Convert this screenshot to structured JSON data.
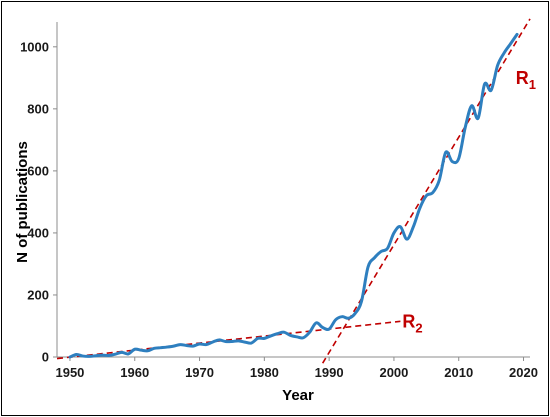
{
  "chart_data": {
    "type": "line",
    "title": "",
    "xlabel": "Year",
    "ylabel": "N of publications",
    "xlim": [
      1948,
      2021
    ],
    "ylim": [
      0,
      1080
    ],
    "x_ticks": [
      1950,
      1960,
      1970,
      1980,
      1990,
      2000,
      2010,
      2020
    ],
    "y_ticks": [
      0,
      200,
      400,
      600,
      800,
      1000
    ],
    "grid": false,
    "legend": "none",
    "series": [
      {
        "color": "#2e7fbf",
        "x": [
          1950,
          1951,
          1952,
          1953,
          1954,
          1955,
          1956,
          1957,
          1958,
          1959,
          1960,
          1961,
          1962,
          1963,
          1964,
          1965,
          1966,
          1967,
          1968,
          1969,
          1970,
          1971,
          1972,
          1973,
          1974,
          1975,
          1976,
          1977,
          1978,
          1979,
          1980,
          1981,
          1982,
          1983,
          1984,
          1985,
          1986,
          1987,
          1988,
          1989,
          1990,
          1991,
          1992,
          1993,
          1994,
          1995,
          1996,
          1997,
          1998,
          1999,
          2000,
          2001,
          2002,
          2003,
          2004,
          2005,
          2006,
          2007,
          2008,
          2009,
          2010,
          2011,
          2012,
          2013,
          2014,
          2015,
          2016,
          2017,
          2018,
          2019
        ],
        "values": [
          0,
          8,
          3,
          2,
          4,
          6,
          5,
          9,
          15,
          10,
          25,
          22,
          20,
          28,
          30,
          32,
          35,
          40,
          37,
          35,
          42,
          40,
          48,
          55,
          50,
          50,
          52,
          48,
          45,
          60,
          60,
          68,
          75,
          80,
          70,
          65,
          62,
          80,
          110,
          95,
          90,
          120,
          130,
          125,
          140,
          180,
          290,
          320,
          340,
          350,
          400,
          420,
          380,
          420,
          480,
          520,
          530,
          570,
          660,
          630,
          640,
          740,
          810,
          770,
          880,
          860,
          940,
          980,
          1010,
          1040
        ]
      }
    ],
    "trend_lines": [
      {
        "name": "R1",
        "color": "#c00000",
        "x": [
          1989,
          2021
        ],
        "values": [
          -20,
          1090
        ]
      },
      {
        "name": "R2",
        "color": "#c00000",
        "x": [
          1948,
          2001
        ],
        "values": [
          -5,
          115
        ]
      }
    ],
    "annotations": [
      {
        "id": "r1",
        "text": "R",
        "subscript": "1",
        "x": 2018.8,
        "y": 880,
        "color": "#c00000"
      },
      {
        "id": "r2",
        "text": "R",
        "subscript": "2",
        "x": 2001.3,
        "y": 95,
        "color": "#c00000"
      }
    ]
  }
}
